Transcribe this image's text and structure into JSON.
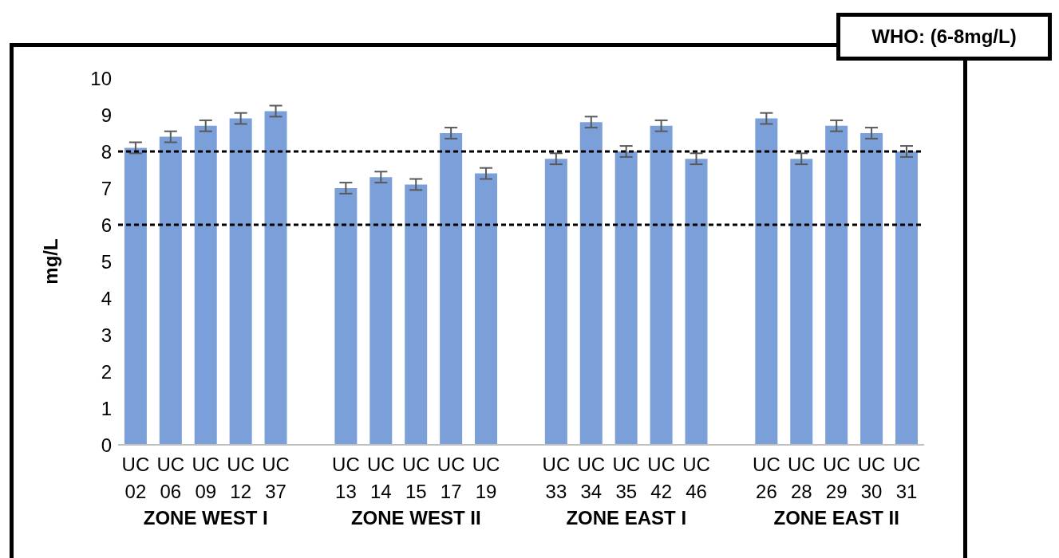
{
  "chart_data": {
    "type": "bar",
    "title": "WHO: (6-8mg/L)",
    "ylabel": "mg/L",
    "categories": [
      "UC 02",
      "UC 06",
      "UC 09",
      "UC 12",
      "UC 37",
      null,
      "UC 13",
      "UC 14",
      "UC 15",
      "UC 17",
      "UC 19",
      null,
      "UC 33",
      "UC 34",
      "UC 35",
      "UC 42",
      "UC 46",
      null,
      "UC 26",
      "UC 28",
      "UC 29",
      "UC 30",
      "UC 31"
    ],
    "values": [
      8.1,
      8.4,
      8.7,
      8.9,
      9.1,
      null,
      7.0,
      7.3,
      7.1,
      8.5,
      7.4,
      null,
      7.8,
      8.8,
      8.0,
      8.7,
      7.8,
      null,
      8.9,
      7.8,
      8.7,
      8.5,
      8.0
    ],
    "errors": [
      0.15,
      0.15,
      0.15,
      0.15,
      0.15,
      null,
      0.15,
      0.15,
      0.15,
      0.15,
      0.15,
      null,
      0.15,
      0.15,
      0.15,
      0.15,
      0.15,
      null,
      0.15,
      0.15,
      0.15,
      0.15,
      0.15
    ],
    "color": "#7b9fd8",
    "ylim": [
      0,
      10
    ],
    "yticks": [
      0,
      1,
      2,
      3,
      4,
      5,
      6,
      7,
      8,
      9,
      10
    ],
    "ref_lines": [
      {
        "axis": "y",
        "value": 6,
        "color": "#000000",
        "line_style": "dashed"
      },
      {
        "axis": "y",
        "value": 8,
        "color": "#000000",
        "line_style": "dashed"
      }
    ],
    "annotations": [
      "ZONE WEST I",
      "ZONE WEST II",
      "ZONE EAST I",
      "ZONE EAST II"
    ],
    "grid": false,
    "legend": false
  }
}
